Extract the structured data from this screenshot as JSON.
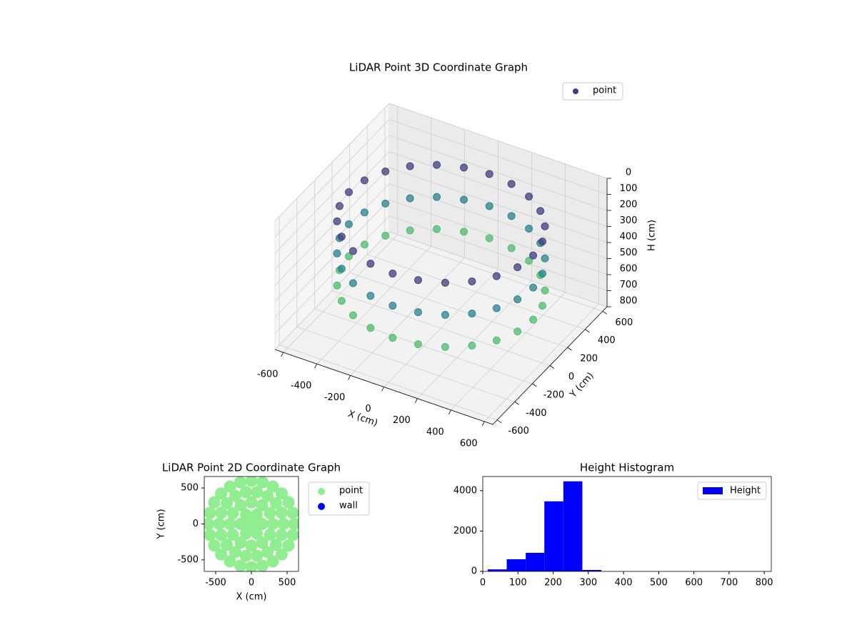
{
  "chart_data": [
    {
      "type": "scatter3d",
      "title": "LiDAR Point 3D Coordinate Graph",
      "xlabel": "X (cm)",
      "ylabel": "Y (cm)",
      "zlabel": "H (cm)",
      "xlim": [
        -650,
        650
      ],
      "ylim": [
        -650,
        650
      ],
      "zlim": [
        800,
        0
      ],
      "xticks": [
        -600,
        -400,
        -200,
        0,
        200,
        400,
        600
      ],
      "yticks": [
        -600,
        -400,
        -200,
        0,
        200,
        400,
        600
      ],
      "zticks": [
        0,
        100,
        200,
        300,
        400,
        500,
        600,
        700,
        800
      ],
      "colormap": "viridis",
      "legend": "upper right",
      "grid": true,
      "series": [
        {
          "name": "point",
          "color": "#443983",
          "x": [
            550,
            531,
            476,
            389,
            275,
            142,
            0,
            -142,
            -275,
            -389,
            -476,
            -531,
            -550,
            -531,
            -476,
            -389,
            -275,
            -142,
            0,
            142,
            275,
            389,
            476,
            531,
            550,
            531,
            476,
            389,
            275,
            142,
            0,
            -142,
            -275,
            -389,
            -476,
            -531,
            -550,
            -531,
            -476,
            -389,
            -275,
            -142,
            0,
            142,
            275,
            389,
            476,
            531,
            550,
            531,
            476,
            389,
            275,
            142,
            0,
            -142,
            -275,
            -389,
            -476,
            -531,
            -550,
            -531,
            -476,
            -389,
            -275,
            -142,
            0,
            142,
            275,
            389,
            476,
            531
          ],
          "y": [
            0,
            142,
            275,
            389,
            476,
            531,
            550,
            531,
            476,
            389,
            275,
            142,
            0,
            -142,
            -275,
            -389,
            -476,
            -531,
            -550,
            -531,
            -476,
            -389,
            -275,
            -142,
            0,
            142,
            275,
            389,
            476,
            531,
            550,
            531,
            476,
            389,
            275,
            142,
            0,
            -142,
            -275,
            -389,
            -476,
            -531,
            -550,
            -531,
            -476,
            -389,
            -275,
            -142,
            0,
            142,
            275,
            389,
            476,
            531,
            550,
            531,
            476,
            389,
            275,
            142,
            0,
            -142,
            -275,
            -389,
            -476,
            -531,
            -550,
            -531,
            -476,
            -389,
            -275,
            -142
          ],
          "z": [
            150,
            150,
            150,
            150,
            150,
            150,
            150,
            150,
            150,
            150,
            150,
            150,
            150,
            150,
            150,
            150,
            150,
            150,
            150,
            150,
            150,
            150,
            150,
            150,
            350,
            350,
            350,
            350,
            350,
            350,
            350,
            350,
            350,
            350,
            350,
            350,
            350,
            350,
            350,
            350,
            350,
            350,
            350,
            350,
            350,
            350,
            350,
            350,
            550,
            550,
            550,
            550,
            550,
            550,
            550,
            550,
            550,
            550,
            550,
            550,
            550,
            550,
            550,
            550,
            550,
            550,
            550,
            550,
            550,
            550,
            550,
            550
          ]
        }
      ]
    },
    {
      "type": "scatter",
      "title": "LiDAR Point 2D Coordinate Graph",
      "xlabel": "X (cm)",
      "ylabel": "Y (cm)",
      "xlim": [
        -660,
        660
      ],
      "ylim": [
        -660,
        660
      ],
      "xticks": [
        -500,
        0,
        500
      ],
      "yticks": [
        -500,
        0,
        500
      ],
      "legend": "outside right",
      "series": [
        {
          "name": "point",
          "color": "#90ee90",
          "x": [
            600,
            580,
            520,
            424,
            300,
            155,
            0,
            -155,
            -300,
            -424,
            -520,
            -580,
            -600,
            -580,
            -520,
            -424,
            -300,
            -155,
            0,
            155,
            300,
            424,
            520,
            580,
            450,
            423,
            345,
            225,
            78,
            -78,
            -225,
            -345,
            -423,
            -450,
            -423,
            -345,
            -225,
            -78,
            78,
            225,
            345,
            423,
            300,
            260,
            150,
            0,
            -150,
            -260,
            -300,
            -260,
            -150,
            0,
            150,
            260,
            150,
            75,
            -75,
            -150,
            -75,
            75,
            0
          ],
          "y": [
            0,
            155,
            300,
            424,
            520,
            580,
            600,
            580,
            520,
            424,
            300,
            155,
            0,
            -155,
            -300,
            -424,
            -520,
            -580,
            -600,
            -580,
            -520,
            -424,
            -300,
            -155,
            0,
            154,
            289,
            390,
            443,
            443,
            390,
            289,
            154,
            0,
            -154,
            -289,
            -390,
            -443,
            -443,
            -390,
            -289,
            -154,
            0,
            150,
            260,
            300,
            260,
            150,
            0,
            -150,
            -260,
            -300,
            -260,
            -150,
            0,
            130,
            130,
            0,
            -130,
            -130,
            0
          ]
        },
        {
          "name": "wall",
          "color": "#0000ff",
          "x": [],
          "y": []
        }
      ]
    },
    {
      "type": "histogram",
      "title": "Height Histogram",
      "name": "Height",
      "color": "#0000ff",
      "legend": "upper right",
      "bins": [
        14,
        68,
        122,
        175,
        229,
        283,
        337,
        390,
        444,
        498,
        551,
        605,
        659,
        712,
        766,
        820
      ],
      "values": [
        100,
        600,
        920,
        3470,
        4460,
        70,
        0,
        0,
        0,
        0,
        0,
        0,
        0,
        0,
        0
      ],
      "xlim": [
        0,
        820
      ],
      "ylim": [
        0,
        4700
      ],
      "xticks": [
        0,
        100,
        200,
        300,
        400,
        500,
        600,
        700,
        800
      ],
      "yticks": [
        0,
        2000,
        4000
      ]
    }
  ]
}
